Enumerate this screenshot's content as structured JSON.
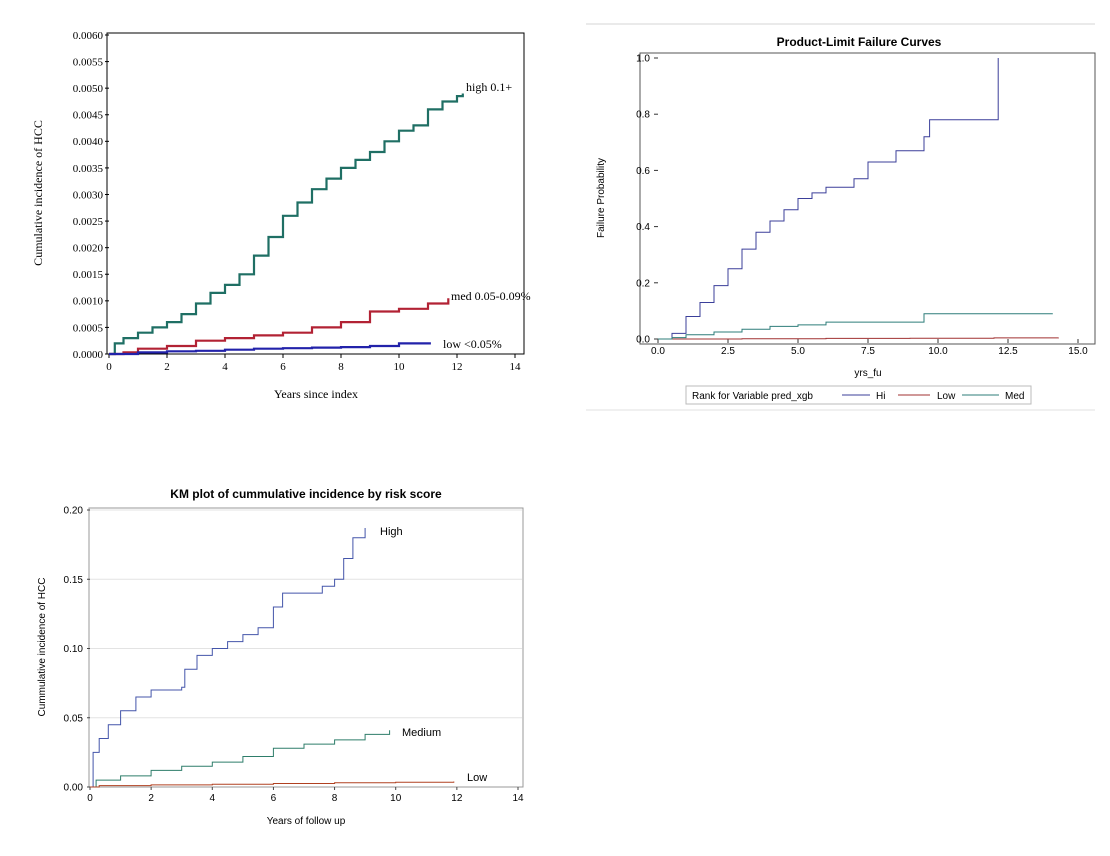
{
  "chart_data": [
    {
      "type": "line",
      "title": "",
      "xlabel": "Years since index",
      "ylabel": "Cumulative incidence of HCC",
      "xlim": [
        0,
        14
      ],
      "ylim": [
        0,
        0.006
      ],
      "x_ticks": [
        "0",
        "2",
        "4",
        "6",
        "8",
        "10",
        "12",
        "14"
      ],
      "y_ticks": [
        "0.0000",
        "0.0005",
        "0.0010",
        "0.0015",
        "0.0020",
        "0.0025",
        "0.0030",
        "0.0035",
        "0.0040",
        "0.0045",
        "0.0050",
        "0.0055",
        "0.0060"
      ],
      "series": [
        {
          "name": "high 0.1+",
          "color": "#1f6f64",
          "x": [
            0,
            0.2,
            0.5,
            1,
            1.5,
            2,
            2.5,
            3,
            3.5,
            4,
            4.5,
            5,
            5.5,
            6,
            6.5,
            7,
            7.5,
            8,
            8.5,
            9,
            9.5,
            10,
            10.5,
            11,
            11.5,
            12,
            12.2
          ],
          "y": [
            0,
            0.0002,
            0.0003,
            0.0004,
            0.0005,
            0.0006,
            0.00075,
            0.00095,
            0.00115,
            0.0013,
            0.0015,
            0.00185,
            0.0022,
            0.0026,
            0.00285,
            0.0031,
            0.0033,
            0.0035,
            0.00365,
            0.0038,
            0.004,
            0.0042,
            0.0043,
            0.0046,
            0.00475,
            0.00485,
            0.0049
          ]
        },
        {
          "name": "med 0.05-0.09%",
          "color": "#b22234",
          "x": [
            0,
            0.5,
            1,
            2,
            3,
            4,
            5,
            6,
            7,
            8,
            9,
            10,
            11,
            11.7
          ],
          "y": [
            0,
            3e-05,
            0.0001,
            0.00015,
            0.00025,
            0.0003,
            0.00035,
            0.0004,
            0.0005,
            0.0006,
            0.0008,
            0.00085,
            0.00095,
            0.00105
          ]
        },
        {
          "name": "low <0.05%",
          "color": "#2222aa",
          "x": [
            0,
            1,
            2,
            3,
            4,
            5,
            6,
            7,
            8,
            9,
            10,
            11.1
          ],
          "y": [
            0,
            3e-05,
            5e-05,
            6e-05,
            8e-05,
            0.0001,
            0.00011,
            0.00012,
            0.00013,
            0.00015,
            0.0002,
            0.0002
          ]
        }
      ]
    },
    {
      "type": "line",
      "title": "Product-Limit Failure Curves",
      "xlabel": "yrs_fu",
      "ylabel": "Failure Probability",
      "xlim": [
        0,
        15
      ],
      "ylim": [
        0,
        1.0
      ],
      "x_ticks": [
        "0.0",
        "2.5",
        "5.0",
        "7.5",
        "10.0",
        "12.5",
        "15.0"
      ],
      "y_ticks": [
        "0.0",
        "0.2",
        "0.4",
        "0.6",
        "0.8",
        "1.0"
      ],
      "legend_title": "Rank for Variable pred_xgb",
      "series": [
        {
          "name": "Hi",
          "color": "#3b3f9a",
          "x": [
            0,
            0.5,
            1,
            1.5,
            2,
            2.5,
            3,
            3.5,
            4,
            4.5,
            5,
            5.5,
            6,
            7,
            7.5,
            8.5,
            9.5,
            9.7,
            12.1,
            12.15
          ],
          "y": [
            0,
            0.02,
            0.08,
            0.13,
            0.19,
            0.25,
            0.32,
            0.38,
            0.42,
            0.46,
            0.5,
            0.52,
            0.54,
            0.57,
            0.63,
            0.67,
            0.72,
            0.78,
            0.78,
            1.0
          ]
        },
        {
          "name": "Low",
          "color": "#a03030",
          "x": [
            0,
            3,
            6,
            9,
            12,
            14.3
          ],
          "y": [
            0,
            0.001,
            0.002,
            0.003,
            0.004,
            0.005
          ]
        },
        {
          "name": "Med",
          "color": "#2e7d7a",
          "x": [
            0,
            0.5,
            1,
            2,
            3,
            4,
            5,
            6,
            9.5,
            9.5,
            14.1
          ],
          "y": [
            0,
            0.005,
            0.015,
            0.025,
            0.035,
            0.045,
            0.05,
            0.06,
            0.06,
            0.09,
            0.09
          ]
        }
      ]
    },
    {
      "type": "line",
      "title": "KM plot of cummulative incidence by risk score",
      "xlabel": "Years of follow up",
      "ylabel": "Cummulative incidence of HCC",
      "xlim": [
        0,
        14
      ],
      "ylim": [
        0,
        0.2
      ],
      "x_ticks": [
        "0",
        "2",
        "4",
        "6",
        "8",
        "10",
        "12",
        "14"
      ],
      "y_ticks": [
        "0.00",
        "0.05",
        "0.10",
        "0.15",
        "0.20"
      ],
      "series": [
        {
          "name": "High",
          "color": "#4455aa",
          "x": [
            0,
            0.1,
            0.3,
            0.6,
            1,
            1.5,
            2,
            3,
            3.1,
            3.5,
            4,
            4.5,
            5,
            5.5,
            6,
            6.3,
            7,
            7.6,
            8,
            8.3,
            8.6,
            9
          ],
          "y": [
            0,
            0.025,
            0.035,
            0.045,
            0.055,
            0.065,
            0.07,
            0.072,
            0.085,
            0.095,
            0.1,
            0.105,
            0.11,
            0.115,
            0.13,
            0.14,
            0.14,
            0.145,
            0.15,
            0.165,
            0.18,
            0.187
          ]
        },
        {
          "name": "Medium",
          "color": "#2e7d6a",
          "x": [
            0,
            0.2,
            1,
            2,
            3,
            4,
            5,
            6,
            7,
            8,
            9,
            9.8
          ],
          "y": [
            0,
            0.005,
            0.008,
            0.012,
            0.015,
            0.018,
            0.022,
            0.028,
            0.031,
            0.034,
            0.038,
            0.041
          ]
        },
        {
          "name": "Low",
          "color": "#b04020",
          "x": [
            0,
            0.3,
            2,
            4,
            6,
            8,
            10,
            11.9
          ],
          "y": [
            0,
            0.001,
            0.0015,
            0.002,
            0.0025,
            0.003,
            0.0035,
            0.004
          ]
        }
      ]
    }
  ]
}
